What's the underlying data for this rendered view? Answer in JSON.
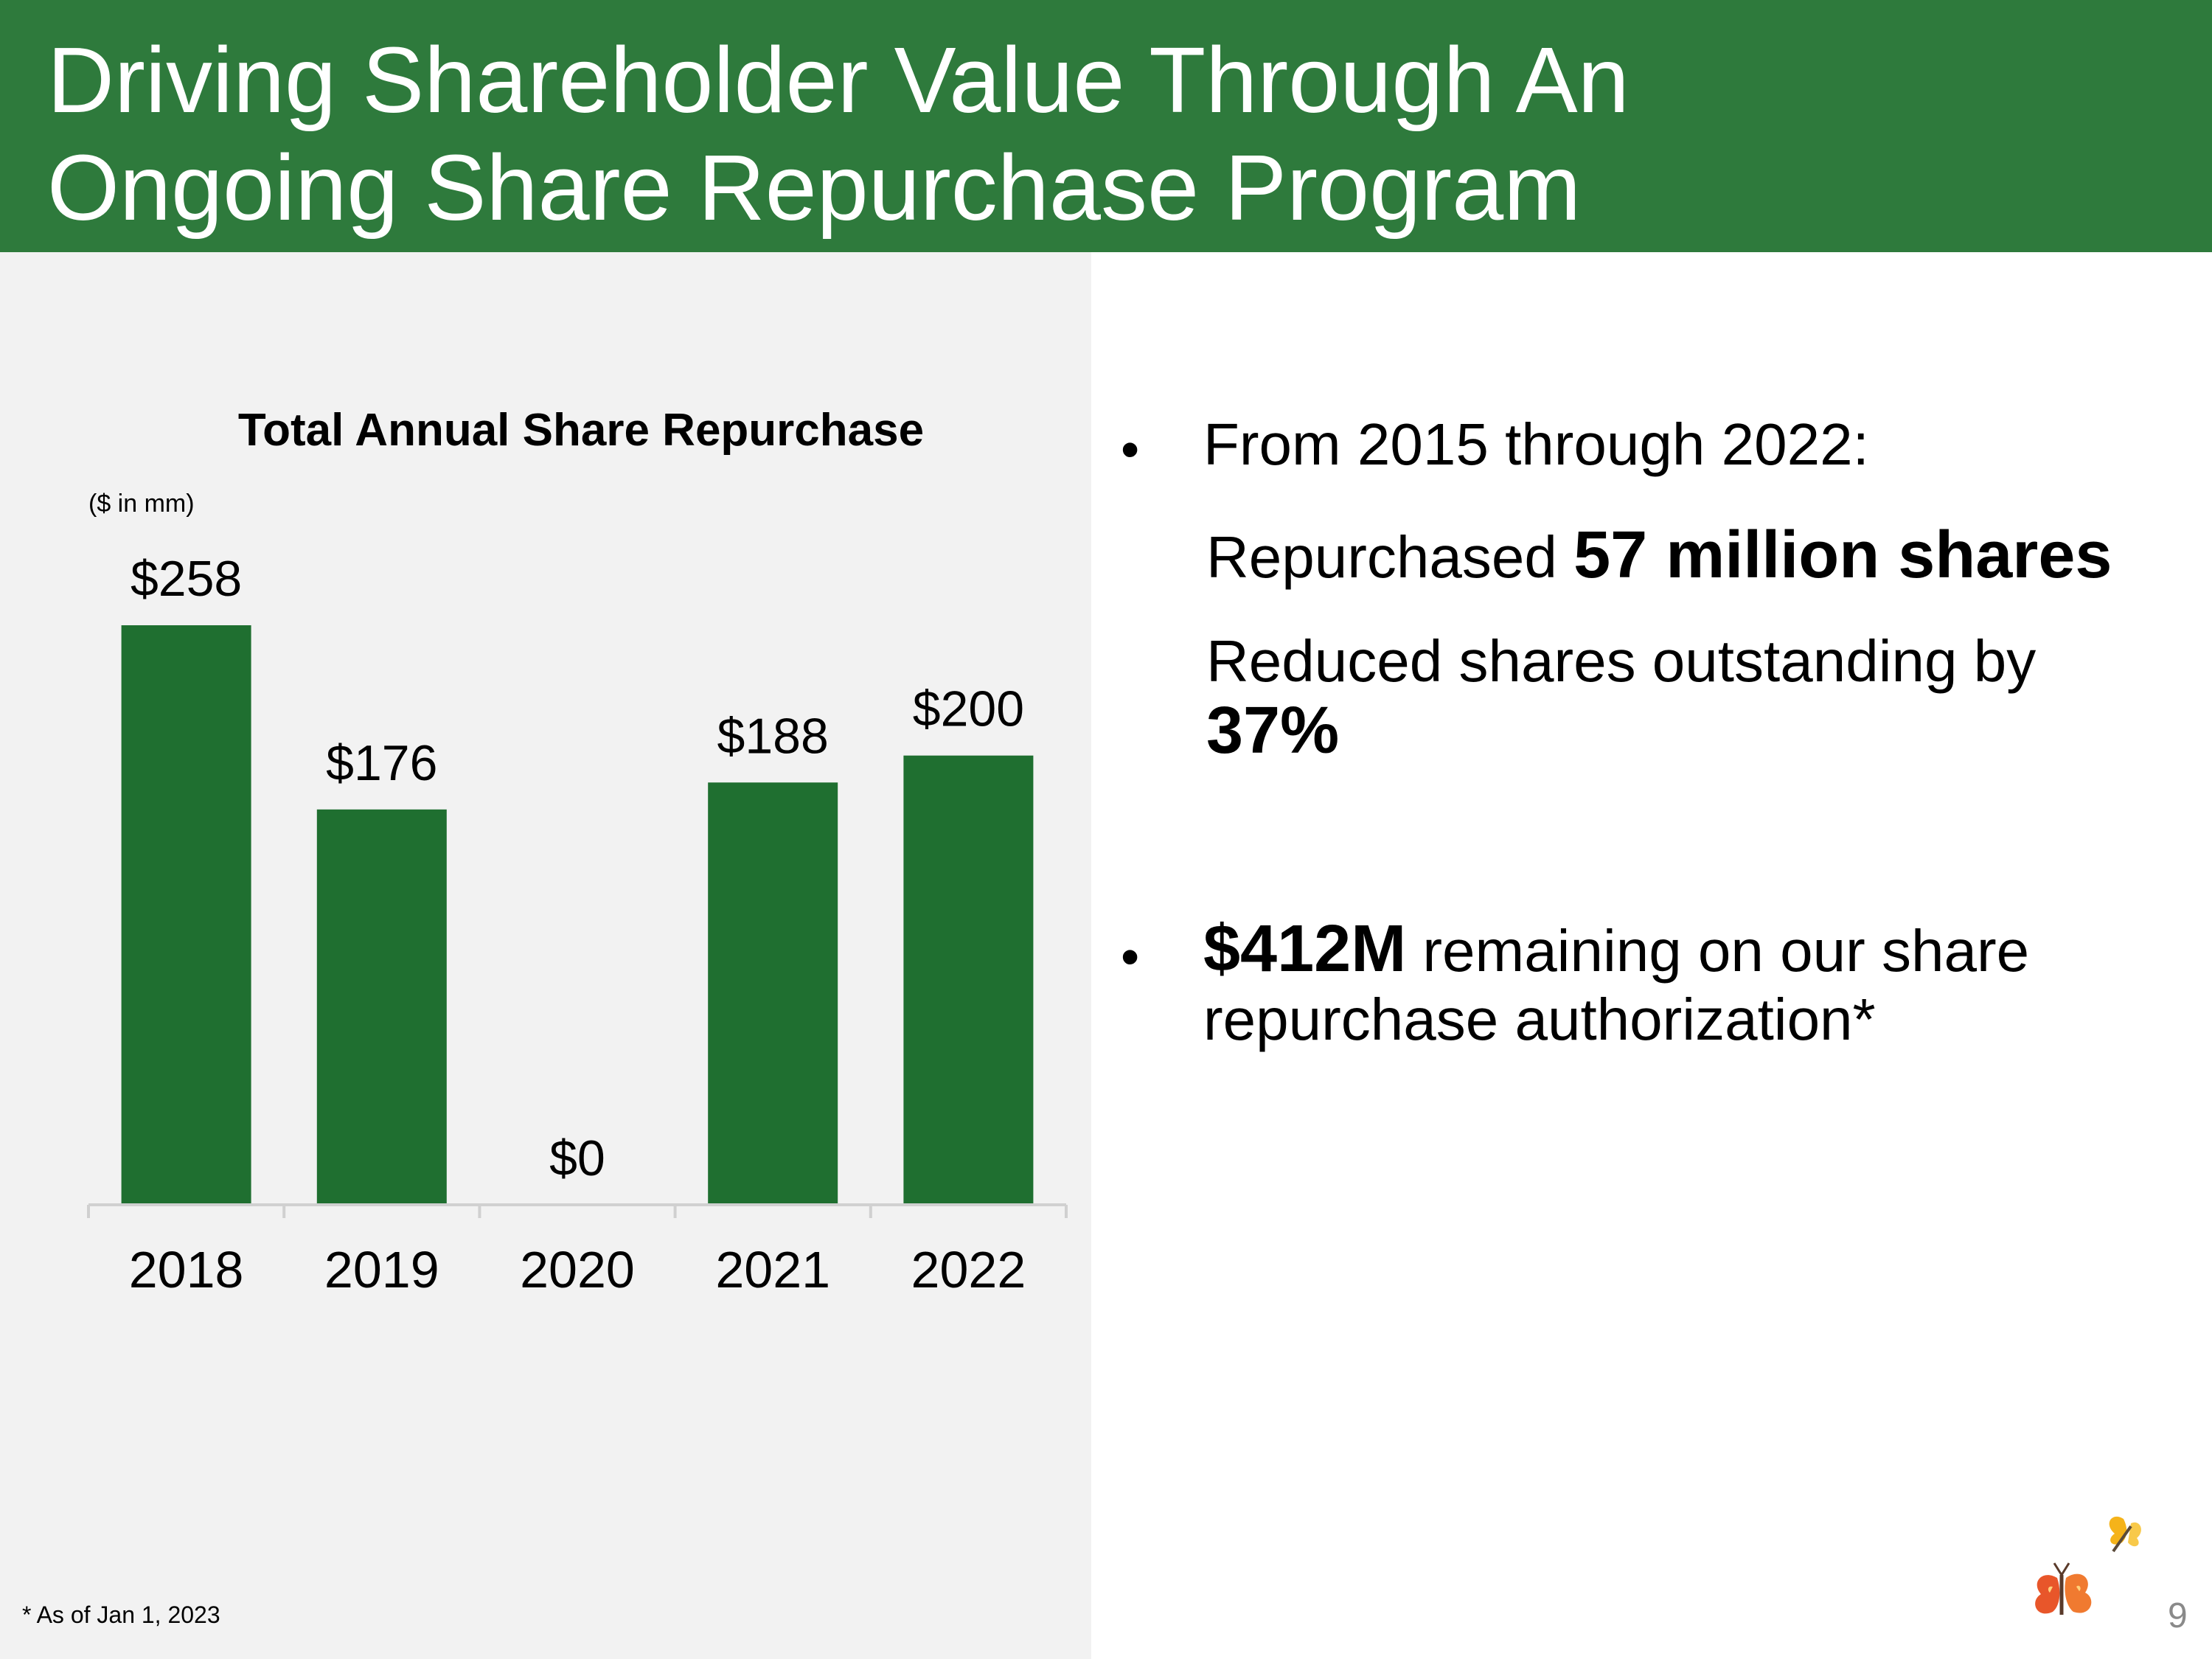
{
  "slide": {
    "title_line1": "Driving Shareholder Value Through An",
    "title_line2": "Ongoing Share Repurchase Program",
    "page_number": "9",
    "footnote": "* As of Jan 1, 2023"
  },
  "bullets": {
    "b1_text": "From 2015 through 2022:",
    "sub1_prefix": "Repurchased ",
    "sub1_bold": "57 million shares",
    "sub2_text": "Reduced shares outstanding by",
    "sub2_bold": "37%",
    "b2_bold": "$412M",
    "b2_rest": " remaining on our share",
    "b2_line2": "repurchase authorization*",
    "bullet_char": "•"
  },
  "colors": {
    "header_green": "#2e7a3c",
    "bar_green": "#1f6f30",
    "panel_gray": "#f2f2f2"
  },
  "chart_data": {
    "type": "bar",
    "title": "Total Annual Share Repurchase",
    "unit_label": "($ in mm)",
    "categories": [
      "2018",
      "2019",
      "2020",
      "2021",
      "2022"
    ],
    "values": [
      258,
      176,
      0,
      188,
      200
    ],
    "value_labels": [
      "$258",
      "$176",
      "$0",
      "$188",
      "$200"
    ],
    "ylim": [
      0,
      258
    ],
    "xlabel": "",
    "ylabel": "",
    "grid": false,
    "legend": "none"
  }
}
